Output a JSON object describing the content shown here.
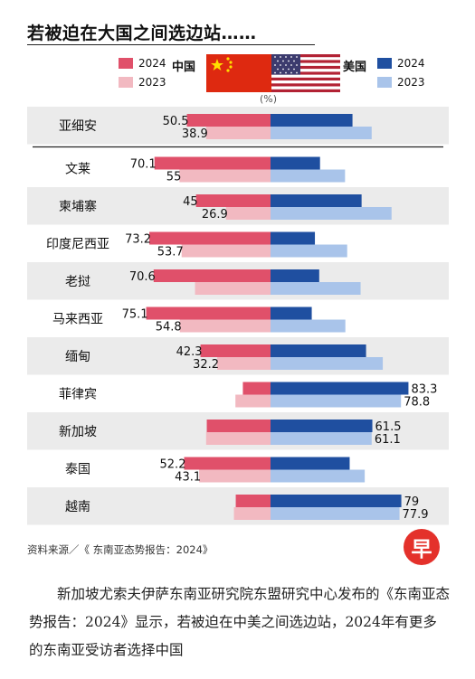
{
  "header": {
    "title": "若被迫在大国之间选边站……"
  },
  "legend": {
    "left": {
      "country": "中国",
      "years": [
        "2024",
        "2023"
      ]
    },
    "right": {
      "country": "美国",
      "years": [
        "2024",
        "2023"
      ]
    },
    "unit": "(%)"
  },
  "colors": {
    "china2024": "#e0506a",
    "china2023": "#f2b9c1",
    "us2024": "#1f4fa0",
    "us2023": "#a9c4ea",
    "band": "#ebebeb"
  },
  "chart_data": {
    "type": "bar",
    "categories": [
      "亚细安",
      "文莱",
      "柬埔寨",
      "印度尼西亚",
      "老挝",
      "马来西亚",
      "缅甸",
      "菲律宾",
      "新加坡",
      "泰国",
      "越南"
    ],
    "series": [
      {
        "name": "中国 2024",
        "values": [
          50.5,
          70.1,
          45,
          73.2,
          70.6,
          75.1,
          42.3,
          16.7,
          38.5,
          52.2,
          21
        ]
      },
      {
        "name": "中国 2023",
        "values": [
          38.9,
          55,
          26.9,
          53.7,
          45.6,
          54.8,
          32.2,
          21.2,
          38.9,
          43.1,
          22.1
        ]
      },
      {
        "name": "美国 2024",
        "values": [
          49.5,
          29.9,
          55,
          26.8,
          29.4,
          24.9,
          57.7,
          83.3,
          61.5,
          47.8,
          79
        ]
      },
      {
        "name": "美国 2023",
        "values": [
          61.1,
          45,
          73.1,
          46.3,
          54.4,
          45.2,
          67.8,
          78.8,
          61.1,
          56.9,
          77.9
        ]
      }
    ],
    "labels": {
      "china2024": [
        "50.5",
        "70.1",
        "45",
        "73.2",
        "70.6",
        "75.1",
        "42.3",
        "",
        "",
        "52.2",
        ""
      ],
      "china2023": [
        "38.9",
        "55",
        "26.9",
        "53.7",
        "",
        "54.8",
        "32.2",
        "",
        "",
        "43.1",
        ""
      ],
      "us2024": [
        "",
        "",
        "",
        "",
        "",
        "",
        "",
        "83.3",
        "61.5",
        "",
        "79"
      ],
      "us2023": [
        "",
        "",
        "",
        "",
        "",
        "",
        "",
        "78.8",
        "61.1",
        "",
        "77.9"
      ]
    },
    "xlim": [
      0,
      100
    ],
    "shaded_rows": [
      0,
      2,
      4,
      6,
      8,
      10
    ]
  },
  "footer": {
    "source": "资料来源／《 东南亚态势报告：2024》",
    "logo": "早",
    "caption": "新加坡尤索夫伊萨东南亚研究院东盟研究中心发布的《东南亚态势报告：2024》显示，若被迫在中美之间选边站，2024年有更多的东南亚受访者选择中国"
  }
}
